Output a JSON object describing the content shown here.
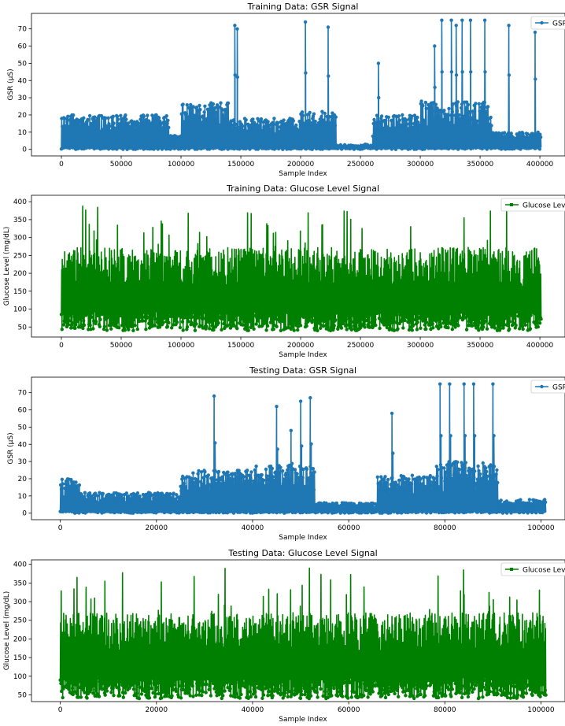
{
  "chart_data": [
    {
      "type": "line",
      "title": "Training Data: GSR Signal",
      "xlabel": "Sample Index",
      "ylabel": "GSR (μS)",
      "xlim": [
        -25000,
        421000
      ],
      "ylim": [
        -3.8,
        79
      ],
      "xticks": [
        0,
        50000,
        100000,
        150000,
        200000,
        250000,
        300000,
        350000,
        400000
      ],
      "yticks": [
        0,
        10,
        20,
        30,
        40,
        50,
        60,
        70
      ],
      "series": [
        {
          "name": "GSR",
          "color": "#1f77b4",
          "marker": "circle"
        }
      ],
      "legend": "top-right",
      "signal": {
        "kind": "gsr",
        "xmax": 401000,
        "base": 7,
        "segments": [
          {
            "x0": 0,
            "x1": 90000,
            "amp": 20
          },
          {
            "x0": 90000,
            "x1": 100000,
            "amp": 8
          },
          {
            "x0": 100000,
            "x1": 140000,
            "amp": 27
          },
          {
            "x0": 140000,
            "x1": 200000,
            "amp": 18
          },
          {
            "x0": 200000,
            "x1": 230000,
            "amp": 22
          },
          {
            "x0": 230000,
            "x1": 260000,
            "amp": 3
          },
          {
            "x0": 260000,
            "x1": 300000,
            "amp": 20
          },
          {
            "x0": 300000,
            "x1": 360000,
            "amp": 28
          },
          {
            "x0": 360000,
            "x1": 401000,
            "amp": 10
          }
        ],
        "spikes": [
          {
            "x": 145000,
            "y": 72
          },
          {
            "x": 147000,
            "y": 70
          },
          {
            "x": 204000,
            "y": 74
          },
          {
            "x": 223000,
            "y": 71
          },
          {
            "x": 265000,
            "y": 50
          },
          {
            "x": 312000,
            "y": 60
          },
          {
            "x": 318000,
            "y": 75
          },
          {
            "x": 326000,
            "y": 75
          },
          {
            "x": 330000,
            "y": 72
          },
          {
            "x": 335000,
            "y": 75
          },
          {
            "x": 342000,
            "y": 75
          },
          {
            "x": 354000,
            "y": 75
          },
          {
            "x": 374000,
            "y": 72
          },
          {
            "x": 396000,
            "y": 68
          }
        ]
      }
    },
    {
      "type": "line",
      "title": "Training Data: Glucose Level Signal",
      "xlabel": "Sample Index",
      "ylabel": "Glucose Level (mg/dL)",
      "xlim": [
        -25000,
        421000
      ],
      "ylim": [
        22,
        418
      ],
      "xticks": [
        0,
        50000,
        100000,
        150000,
        200000,
        250000,
        300000,
        350000,
        400000
      ],
      "yticks": [
        50,
        100,
        150,
        200,
        250,
        300,
        350,
        400
      ],
      "series": [
        {
          "name": "Glucose Level",
          "color": "#008000",
          "marker": "square"
        }
      ],
      "legend": "top-right",
      "signal": {
        "kind": "glucose",
        "xmax": 401000,
        "center": 160,
        "spread": 80,
        "min": 40,
        "max": 400
      }
    },
    {
      "type": "line",
      "title": "Testing Data: GSR Signal",
      "xlabel": "Sample Index",
      "ylabel": "GSR (μS)",
      "xlim": [
        -6000,
        105000
      ],
      "ylim": [
        -3.8,
        79
      ],
      "xticks": [
        0,
        20000,
        40000,
        60000,
        80000,
        100000
      ],
      "yticks": [
        0,
        10,
        20,
        30,
        40,
        50,
        60,
        70
      ],
      "series": [
        {
          "name": "GSR",
          "color": "#1f77b4",
          "marker": "circle"
        }
      ],
      "legend": "top-right",
      "signal": {
        "kind": "gsr",
        "xmax": 101000,
        "base": 3,
        "segments": [
          {
            "x0": 0,
            "x1": 4000,
            "amp": 20
          },
          {
            "x0": 4000,
            "x1": 25000,
            "amp": 12
          },
          {
            "x0": 25000,
            "x1": 40000,
            "amp": 25
          },
          {
            "x0": 40000,
            "x1": 53000,
            "amp": 28
          },
          {
            "x0": 53000,
            "x1": 66000,
            "amp": 6
          },
          {
            "x0": 66000,
            "x1": 78000,
            "amp": 22
          },
          {
            "x0": 78000,
            "x1": 91000,
            "amp": 30
          },
          {
            "x0": 91000,
            "x1": 101000,
            "amp": 8
          }
        ],
        "spikes": [
          {
            "x": 32000,
            "y": 68
          },
          {
            "x": 45000,
            "y": 62
          },
          {
            "x": 48000,
            "y": 48
          },
          {
            "x": 50000,
            "y": 65
          },
          {
            "x": 52000,
            "y": 67
          },
          {
            "x": 69000,
            "y": 58
          },
          {
            "x": 79000,
            "y": 75
          },
          {
            "x": 81000,
            "y": 75
          },
          {
            "x": 84000,
            "y": 75
          },
          {
            "x": 86000,
            "y": 75
          },
          {
            "x": 90000,
            "y": 75
          }
        ]
      }
    },
    {
      "type": "line",
      "title": "Testing Data: Glucose Level Signal",
      "xlabel": "Sample Index",
      "ylabel": "Glucose Level (mg/dL)",
      "xlim": [
        -6000,
        105000
      ],
      "ylim": [
        32,
        412
      ],
      "xticks": [
        0,
        20000,
        40000,
        60000,
        80000,
        100000
      ],
      "yticks": [
        50,
        100,
        150,
        200,
        250,
        300,
        350,
        400
      ],
      "series": [
        {
          "name": "Glucose Level",
          "color": "#008000",
          "marker": "square"
        }
      ],
      "legend": "top-right",
      "signal": {
        "kind": "glucose",
        "xmax": 101000,
        "center": 165,
        "spread": 75,
        "min": 40,
        "max": 400
      }
    }
  ]
}
